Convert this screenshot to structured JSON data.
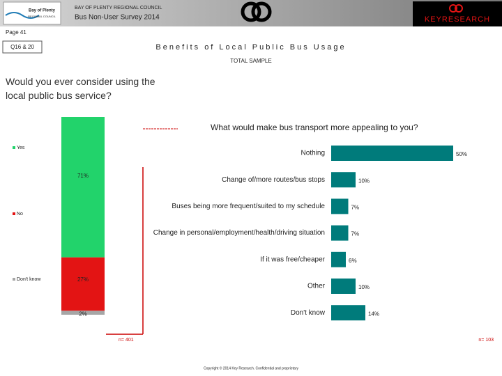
{
  "header": {
    "council_logo_name": "Bay of Plenty",
    "council_logo_sub": "REGIONAL COUNCIL",
    "organisation": "BAY OF PLENTY REGIONAL COUNCIL",
    "survey": "Bus Non-User Survey 2014",
    "brand": "KEYRESEARCH",
    "page": "Page 41",
    "question_ref": "Q16 & 20",
    "title": "Benefits of Local Public Bus Usage",
    "subtitle": "TOTAL SAMPLE"
  },
  "footer": {
    "copyright": "Copyright © 2014 Key Research. Confidential and proprietary"
  },
  "chart_data": [
    {
      "type": "stacked_bar",
      "title": "Would you ever consider using the local public bus service?",
      "annotation": "n= 401",
      "legend": "left",
      "series": [
        {
          "name": "Yes",
          "color": "#22d36b",
          "values": [
            71
          ],
          "value_labels": [
            "71%"
          ]
        },
        {
          "name": "No",
          "color": "#e31414",
          "values": [
            27
          ],
          "value_labels": [
            "27%"
          ]
        },
        {
          "name": "Don't know",
          "color": "#a6a6a6",
          "values": [
            2
          ],
          "value_labels": [
            "2%"
          ]
        }
      ]
    },
    {
      "type": "hbar",
      "title": "What would make bus transport more appealing to you?",
      "annotation": "n= 103",
      "color": "#007b7b",
      "categories": [
        "Nothing",
        "Change of/more routes/bus stops",
        "Buses being more frequent/suited to my schedule",
        "Change in personal/employment/health/driving situation",
        "If it was free/cheaper",
        "Other",
        "Don't know"
      ],
      "values": [
        50,
        10,
        7,
        7,
        6,
        10,
        14
      ],
      "value_labels": [
        "50%",
        "10%",
        "7%",
        "7%",
        "6%",
        "10%",
        "14%"
      ]
    }
  ]
}
